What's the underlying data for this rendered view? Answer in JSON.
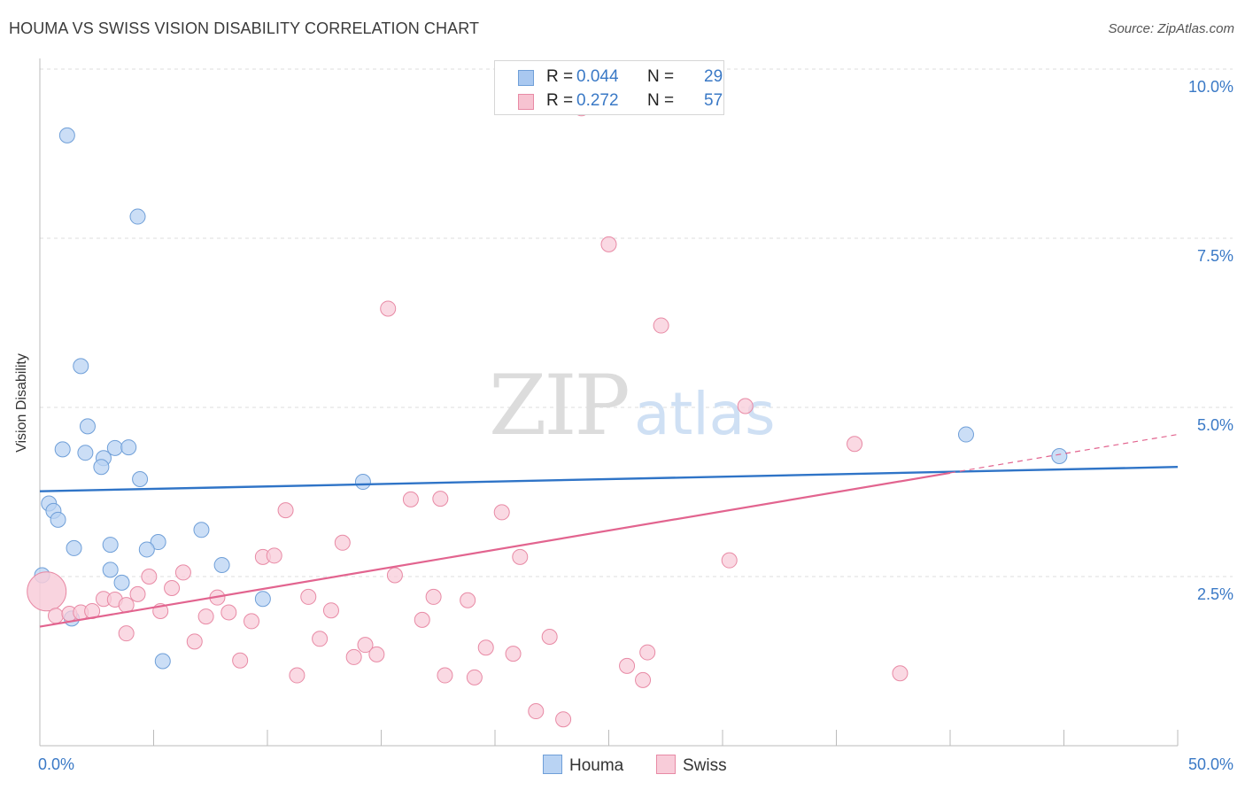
{
  "header": {
    "title": "HOUMA VS SWISS VISION DISABILITY CORRELATION CHART",
    "source": "Source: ZipAtlas.com"
  },
  "watermark": {
    "zip": "ZIP",
    "atlas": "atlas"
  },
  "stats": [
    {
      "r_label": "R =",
      "r_value": "0.044",
      "n_label": "N =",
      "n_value": "29",
      "color": "#a9c8f0",
      "border": "#6f9fd8"
    },
    {
      "r_label": "R =",
      "r_value": "0.272",
      "n_label": "N =",
      "n_value": "57",
      "color": "#f7c3d1",
      "border": "#e88aa5"
    }
  ],
  "legend": [
    {
      "label": "Houma",
      "color": "#b9d3f3",
      "border": "#6f9fd8"
    },
    {
      "label": "Swiss",
      "color": "#f8ccd9",
      "border": "#e88aa5"
    }
  ],
  "chart_data": {
    "type": "scatter",
    "title": "HOUMA VS SWISS VISION DISABILITY CORRELATION CHART",
    "xlabel": "",
    "ylabel": "Vision Disability",
    "xlim": [
      0,
      50
    ],
    "ylim": [
      0,
      10
    ],
    "x_tick_labels": [
      "0.0%",
      "50.0%"
    ],
    "y_ticks": [
      2.5,
      5.0,
      7.5,
      10.0
    ],
    "y_tick_labels": [
      "2.5%",
      "5.0%",
      "7.5%",
      "10.0%"
    ],
    "grid": true,
    "legend_position": "bottom-center",
    "series": [
      {
        "name": "Houma",
        "color": "#6f9fd8",
        "fill": "#b9d3f3",
        "line_color": "#2f74c7",
        "trend": {
          "x": [
            0,
            50
          ],
          "y": [
            3.76,
            4.12
          ]
        },
        "points": [
          [
            1.2,
            9.02
          ],
          [
            4.3,
            7.82
          ],
          [
            1.8,
            5.61
          ],
          [
            2.1,
            4.72
          ],
          [
            1.0,
            4.38
          ],
          [
            2.0,
            4.33
          ],
          [
            3.3,
            4.4
          ],
          [
            3.9,
            4.41
          ],
          [
            2.8,
            4.25
          ],
          [
            2.7,
            4.12
          ],
          [
            4.4,
            3.94
          ],
          [
            0.4,
            3.58
          ],
          [
            0.6,
            3.47
          ],
          [
            0.8,
            3.34
          ],
          [
            14.2,
            3.9
          ],
          [
            7.1,
            3.19
          ],
          [
            5.2,
            3.01
          ],
          [
            3.1,
            2.97
          ],
          [
            1.5,
            2.92
          ],
          [
            4.7,
            2.9
          ],
          [
            3.1,
            2.6
          ],
          [
            8.0,
            2.67
          ],
          [
            0.1,
            2.52
          ],
          [
            3.6,
            2.41
          ],
          [
            9.8,
            2.17
          ],
          [
            1.4,
            1.88
          ],
          [
            5.4,
            1.25
          ],
          [
            40.7,
            4.6
          ],
          [
            44.8,
            4.28
          ]
        ]
      },
      {
        "name": "Swiss",
        "color": "#e88aa5",
        "fill": "#f8ccd9",
        "line_color": "#e2648f",
        "trend": {
          "x": [
            0,
            50
          ],
          "y": [
            1.76,
            4.6
          ]
        },
        "trend_solid_to_x": 40.0,
        "points": [
          [
            0.3,
            2.28
          ],
          [
            0.7,
            1.92
          ],
          [
            1.3,
            1.95
          ],
          [
            1.8,
            1.97
          ],
          [
            2.3,
            1.99
          ],
          [
            2.8,
            2.17
          ],
          [
            3.3,
            2.16
          ],
          [
            3.8,
            2.08
          ],
          [
            4.3,
            2.24
          ],
          [
            4.8,
            2.5
          ],
          [
            5.3,
            1.99
          ],
          [
            5.8,
            2.33
          ],
          [
            6.3,
            2.56
          ],
          [
            6.8,
            1.54
          ],
          [
            7.3,
            1.91
          ],
          [
            7.8,
            2.19
          ],
          [
            8.3,
            1.97
          ],
          [
            8.8,
            1.26
          ],
          [
            9.3,
            1.84
          ],
          [
            9.8,
            2.79
          ],
          [
            10.3,
            2.81
          ],
          [
            10.8,
            3.48
          ],
          [
            11.3,
            1.04
          ],
          [
            11.8,
            2.2
          ],
          [
            12.3,
            1.58
          ],
          [
            12.8,
            2.0
          ],
          [
            13.3,
            3.0
          ],
          [
            13.8,
            1.31
          ],
          [
            14.3,
            1.49
          ],
          [
            14.8,
            1.35
          ],
          [
            15.3,
            6.46
          ],
          [
            15.6,
            2.52
          ],
          [
            16.3,
            3.64
          ],
          [
            16.8,
            1.86
          ],
          [
            17.3,
            2.2
          ],
          [
            17.6,
            3.65
          ],
          [
            17.8,
            1.04
          ],
          [
            18.8,
            2.15
          ],
          [
            19.1,
            1.01
          ],
          [
            19.6,
            1.45
          ],
          [
            20.3,
            3.45
          ],
          [
            20.8,
            1.36
          ],
          [
            21.1,
            2.79
          ],
          [
            21.8,
            0.51
          ],
          [
            22.4,
            1.61
          ],
          [
            23.0,
            0.39
          ],
          [
            23.8,
            9.42
          ],
          [
            25.0,
            7.41
          ],
          [
            25.8,
            1.18
          ],
          [
            26.5,
            0.97
          ],
          [
            26.7,
            1.38
          ],
          [
            27.3,
            6.21
          ],
          [
            30.3,
            2.74
          ],
          [
            31.0,
            5.02
          ],
          [
            35.8,
            4.46
          ],
          [
            37.8,
            1.07
          ],
          [
            3.8,
            1.66
          ]
        ]
      }
    ]
  }
}
